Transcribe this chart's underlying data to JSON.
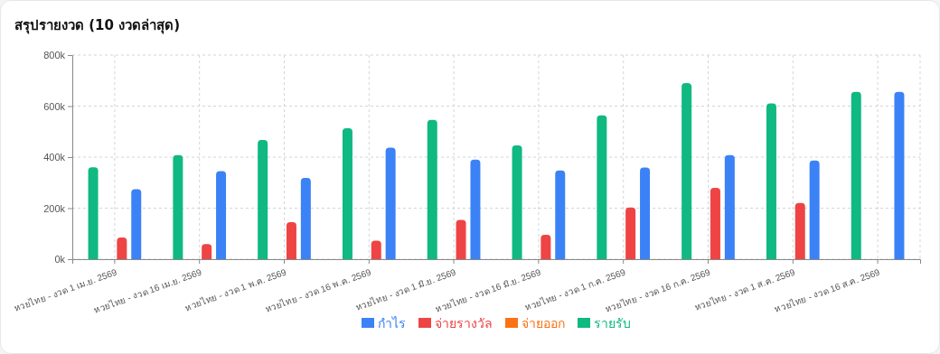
{
  "chart_data": {
    "type": "bar",
    "title": "สรุปรายงวด (10 งวดล่าสุด)",
    "categories": [
      "หวยไทย - งวด 1 เม.ย. 2569",
      "หวยไทย - งวด 16 เม.ย. 2569",
      "หวยไทย - งวด 1 พ.ค. 2569",
      "หวยไทย - งวด 16 พ.ค. 2569",
      "หวยไทย - งวด 1 มิ.ย. 2569",
      "หวยไทย - งวด 16 มิ.ย. 2569",
      "หวยไทย - งวด 1 ก.ค. 2569",
      "หวยไทย - งวด 16 ก.ค. 2569",
      "หวยไทย - งวด 1 ส.ค. 2569",
      "หวยไทย - งวด 16 ส.ค. 2569"
    ],
    "series": [
      {
        "name": "รายรับ",
        "color": "#10b981",
        "values": [
          360,
          408,
          467,
          513,
          546,
          446,
          564,
          690,
          611,
          656
        ]
      },
      {
        "name": "จ่ายออก",
        "color": "#f97316",
        "values": [
          0,
          0,
          0,
          0,
          0,
          0,
          0,
          0,
          0,
          0
        ]
      },
      {
        "name": "จ่ายรางวัล",
        "color": "#ef4444",
        "values": [
          85,
          59,
          145,
          73,
          154,
          96,
          203,
          280,
          220,
          0
        ]
      },
      {
        "name": "กำไร",
        "color": "#3b82f6",
        "values": [
          274,
          345,
          319,
          437,
          390,
          348,
          359,
          408,
          387,
          656
        ]
      }
    ],
    "ylim": [
      0,
      800
    ],
    "yticks": [
      {
        "value": 0,
        "label": "0k"
      },
      {
        "value": 200,
        "label": "200k"
      },
      {
        "value": 400,
        "label": "400k"
      },
      {
        "value": 600,
        "label": "600k"
      },
      {
        "value": 800,
        "label": "800k"
      }
    ],
    "grid": true,
    "legend": "bottom"
  }
}
